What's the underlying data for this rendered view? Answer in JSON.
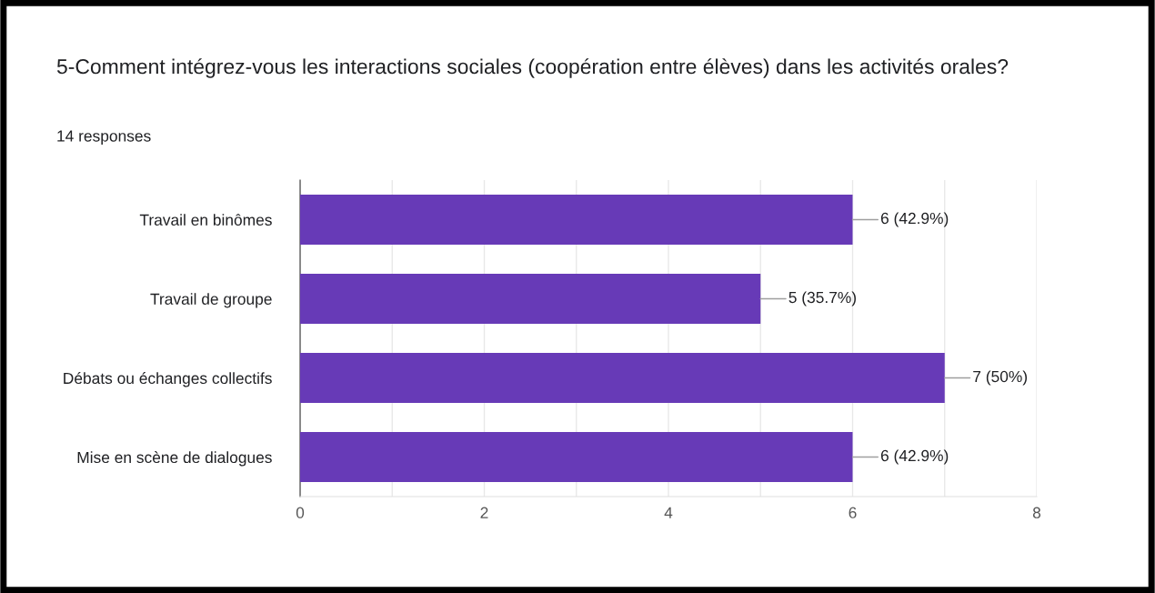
{
  "chart_data": {
    "type": "bar",
    "orientation": "horizontal",
    "title": "5-Comment intégrez-vous les interactions sociales (coopération entre élèves) dans les activités orales?",
    "subtitle": "14 responses",
    "categories": [
      "Travail en binômes",
      "Travail de groupe",
      "Débats ou échanges collectifs",
      "Mise en scène de dialogues"
    ],
    "values": [
      6,
      5,
      7,
      6
    ],
    "value_labels": [
      "6 (42.9%)",
      "5 (35.7%)",
      "7 (50%)",
      "6 (42.9%)"
    ],
    "color": "#673ab7",
    "xlim": [
      0,
      8
    ],
    "xticks": [
      0,
      {
        "value": 1,
        "label": null
      },
      2,
      {
        "value": 3,
        "label": null
      },
      4,
      {
        "value": 5,
        "label": null
      },
      6,
      {
        "value": 7,
        "label": null
      },
      8
    ],
    "grid": "x",
    "legend": false
  }
}
